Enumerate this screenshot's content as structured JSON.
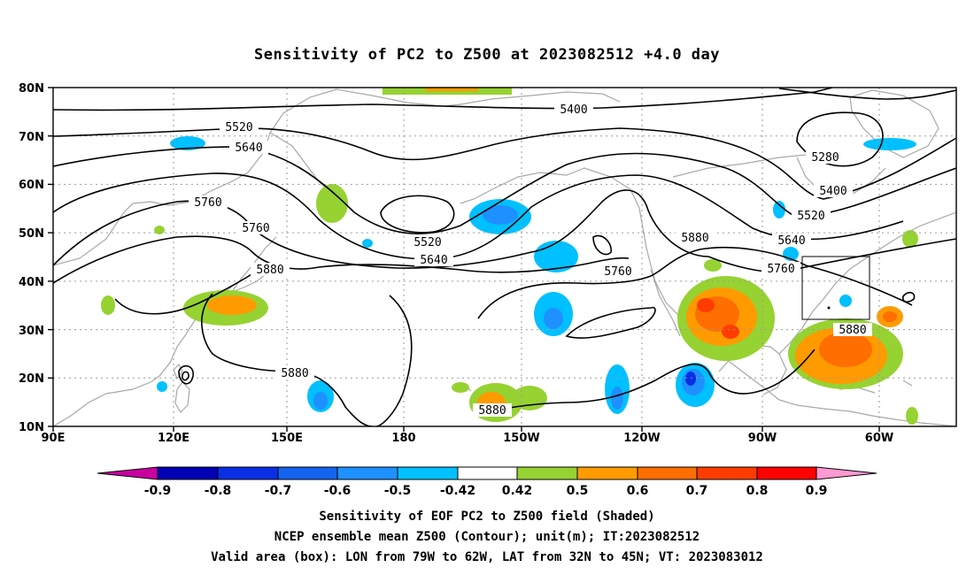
{
  "title": "Sensitivity of PC2 to Z500 at 2023082512 +4.0 day",
  "lat_ticks": [
    "80N",
    "70N",
    "60N",
    "50N",
    "40N",
    "30N",
    "20N",
    "10N"
  ],
  "lon_ticks": [
    "90E",
    "120E",
    "150E",
    "180",
    "150W",
    "120W",
    "90W",
    "60W"
  ],
  "contour_labels": [
    {
      "text": "5400"
    },
    {
      "text": "5520"
    },
    {
      "text": "5640"
    },
    {
      "text": "5280"
    },
    {
      "text": "5400"
    },
    {
      "text": "5520"
    },
    {
      "text": "5640"
    },
    {
      "text": "5760"
    },
    {
      "text": "5520"
    },
    {
      "text": "5640"
    },
    {
      "text": "5760"
    },
    {
      "text": "5760"
    },
    {
      "text": "5760"
    },
    {
      "text": "5880"
    },
    {
      "text": "5880"
    },
    {
      "text": "5880"
    },
    {
      "text": "5880"
    },
    {
      "text": "5880"
    }
  ],
  "colorbar": {
    "labels": [
      "-0.9",
      "-0.8",
      "-0.7",
      "-0.6",
      "-0.5",
      "-0.42",
      "0.42",
      "0.5",
      "0.6",
      "0.7",
      "0.8",
      "0.9"
    ],
    "colors": [
      "#0000b4",
      "#0a2ee6",
      "#1464f0",
      "#1e90ff",
      "#00c0ff",
      "#ffffff",
      "#96d232",
      "#ff9b00",
      "#ff6e00",
      "#ff3c00",
      "#ff0000"
    ],
    "low_end_color": "#c800a0",
    "high_end_color": "#ff9ad2"
  },
  "caption": [
    "Sensitivity of EOF PC2 to Z500 field (Shaded)",
    "NCEP ensemble mean Z500 (Contour); unit(m); IT:2023082512",
    "Valid area (box): LON from 79W to 62W, LAT from 32N to 45N; VT: 2023083012"
  ],
  "map": {
    "lon_range": [
      "90E",
      "45W"
    ],
    "lat_range": [
      "10N",
      "80N"
    ],
    "valid_box": {
      "lon": [
        "79W",
        "62W"
      ],
      "lat": [
        "32N",
        "45N"
      ]
    },
    "colors": {
      "coast": "#a8a8a8",
      "contour": "#000000",
      "grid": "#9a9a9a"
    }
  }
}
